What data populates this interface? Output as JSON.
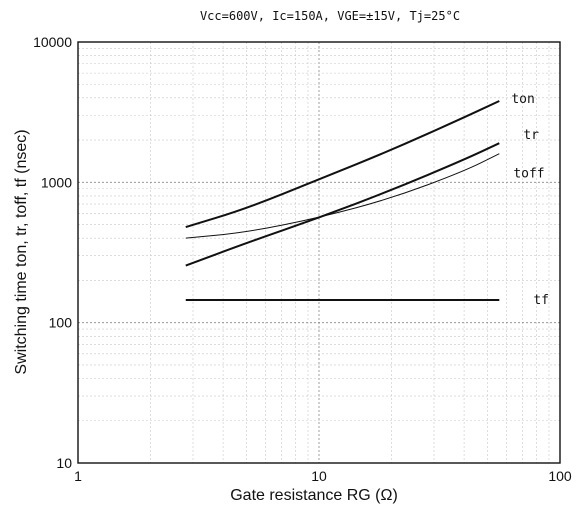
{
  "chart_data": {
    "type": "line",
    "title": "Vcc=600V,  Ic=150A,  VGE=±15V,  Tj=25°C",
    "xlabel": "Gate resistance    RG (Ω)",
    "ylabel": "Switching time  ton, tr, toff, tf (nsec)",
    "x_scale": "log",
    "y_scale": "log",
    "xlim": [
      1,
      100
    ],
    "ylim": [
      10,
      10000
    ],
    "x_ticks": [
      "1",
      "10",
      "100"
    ],
    "y_ticks": [
      "10",
      "100",
      "1000",
      "10000"
    ],
    "grid": true,
    "series": [
      {
        "name": "ton",
        "line": "bold",
        "x": [
          2.8,
          5,
          10,
          20,
          40,
          56
        ],
        "y": [
          480,
          650,
          1050,
          1700,
          2900,
          3800
        ]
      },
      {
        "name": "tr",
        "line": "bold",
        "x": [
          2.8,
          5,
          10,
          20,
          40,
          56
        ],
        "y": [
          255,
          370,
          560,
          880,
          1450,
          1900
        ]
      },
      {
        "name": "toff",
        "line": "thin",
        "x": [
          2.8,
          5,
          10,
          20,
          40,
          56
        ],
        "y": [
          400,
          440,
          560,
          770,
          1200,
          1600
        ]
      },
      {
        "name": "tf",
        "line": "bold",
        "x": [
          2.8,
          56
        ],
        "y": [
          145,
          145
        ]
      }
    ]
  }
}
